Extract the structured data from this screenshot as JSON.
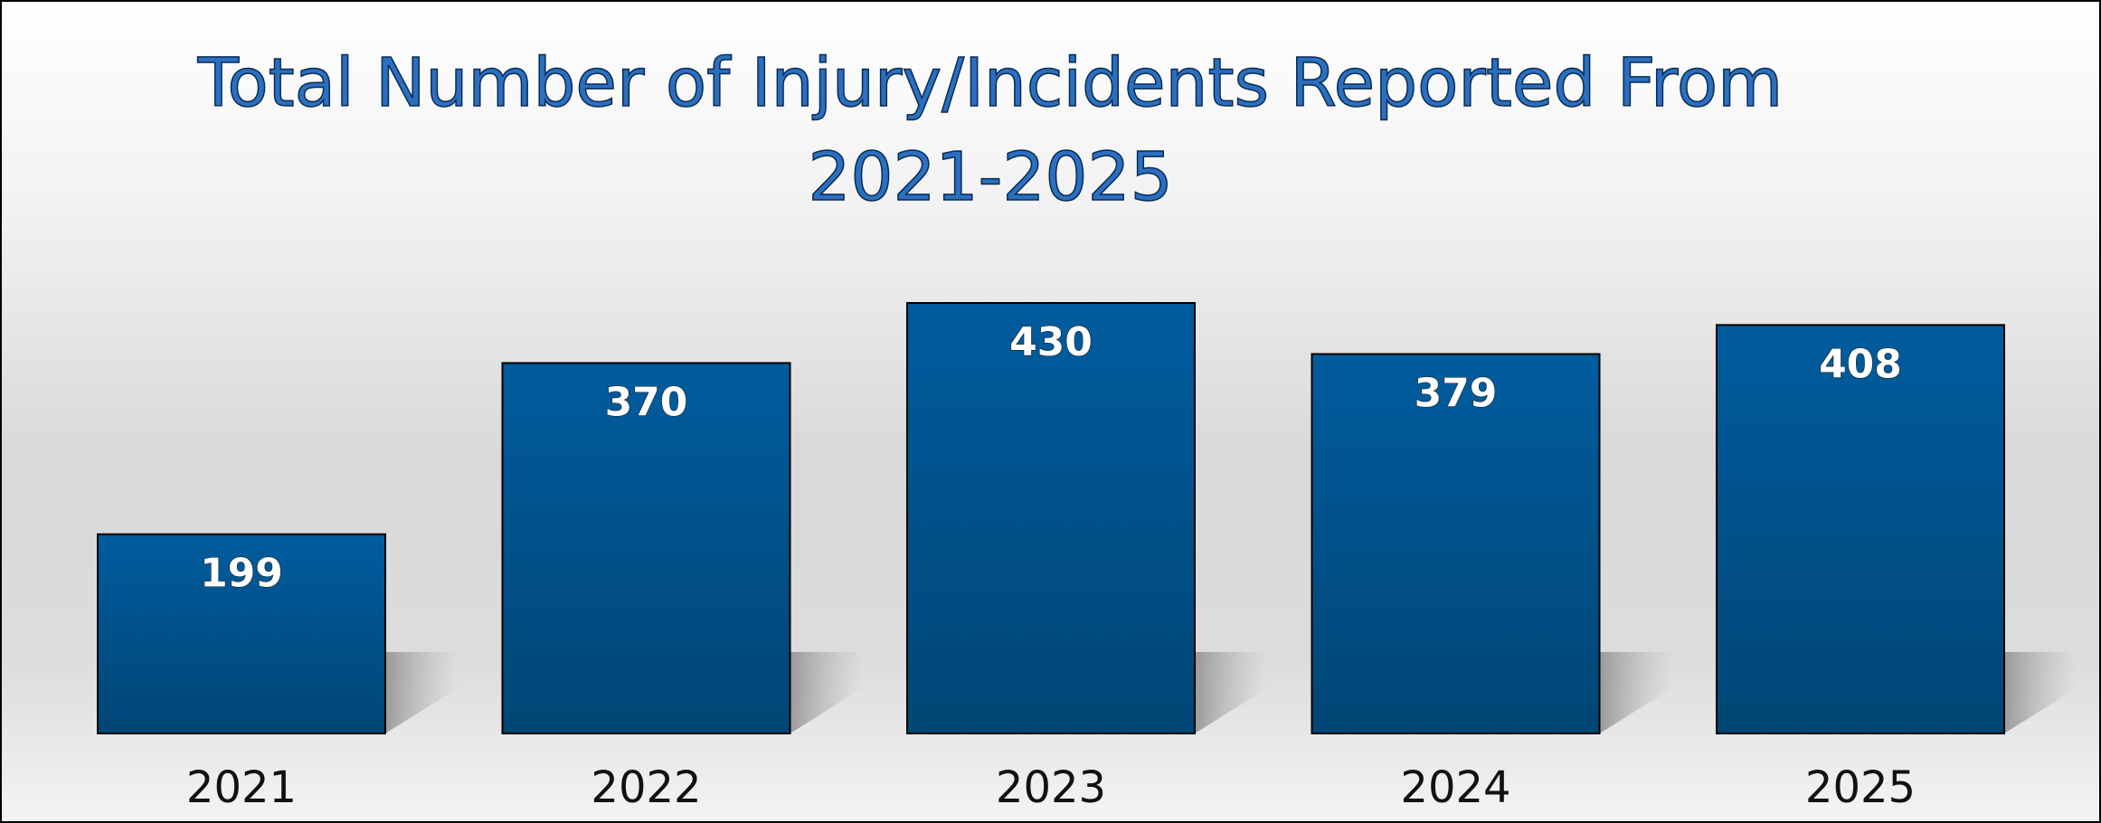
{
  "chart_data": {
    "type": "bar",
    "title": "Total Number of Injury/Incidents Reported From 2021-2025",
    "categories": [
      "2021",
      "2022",
      "2023",
      "2024",
      "2025"
    ],
    "values": [
      199,
      370,
      430,
      379,
      408
    ],
    "color": "#00528c"
  }
}
